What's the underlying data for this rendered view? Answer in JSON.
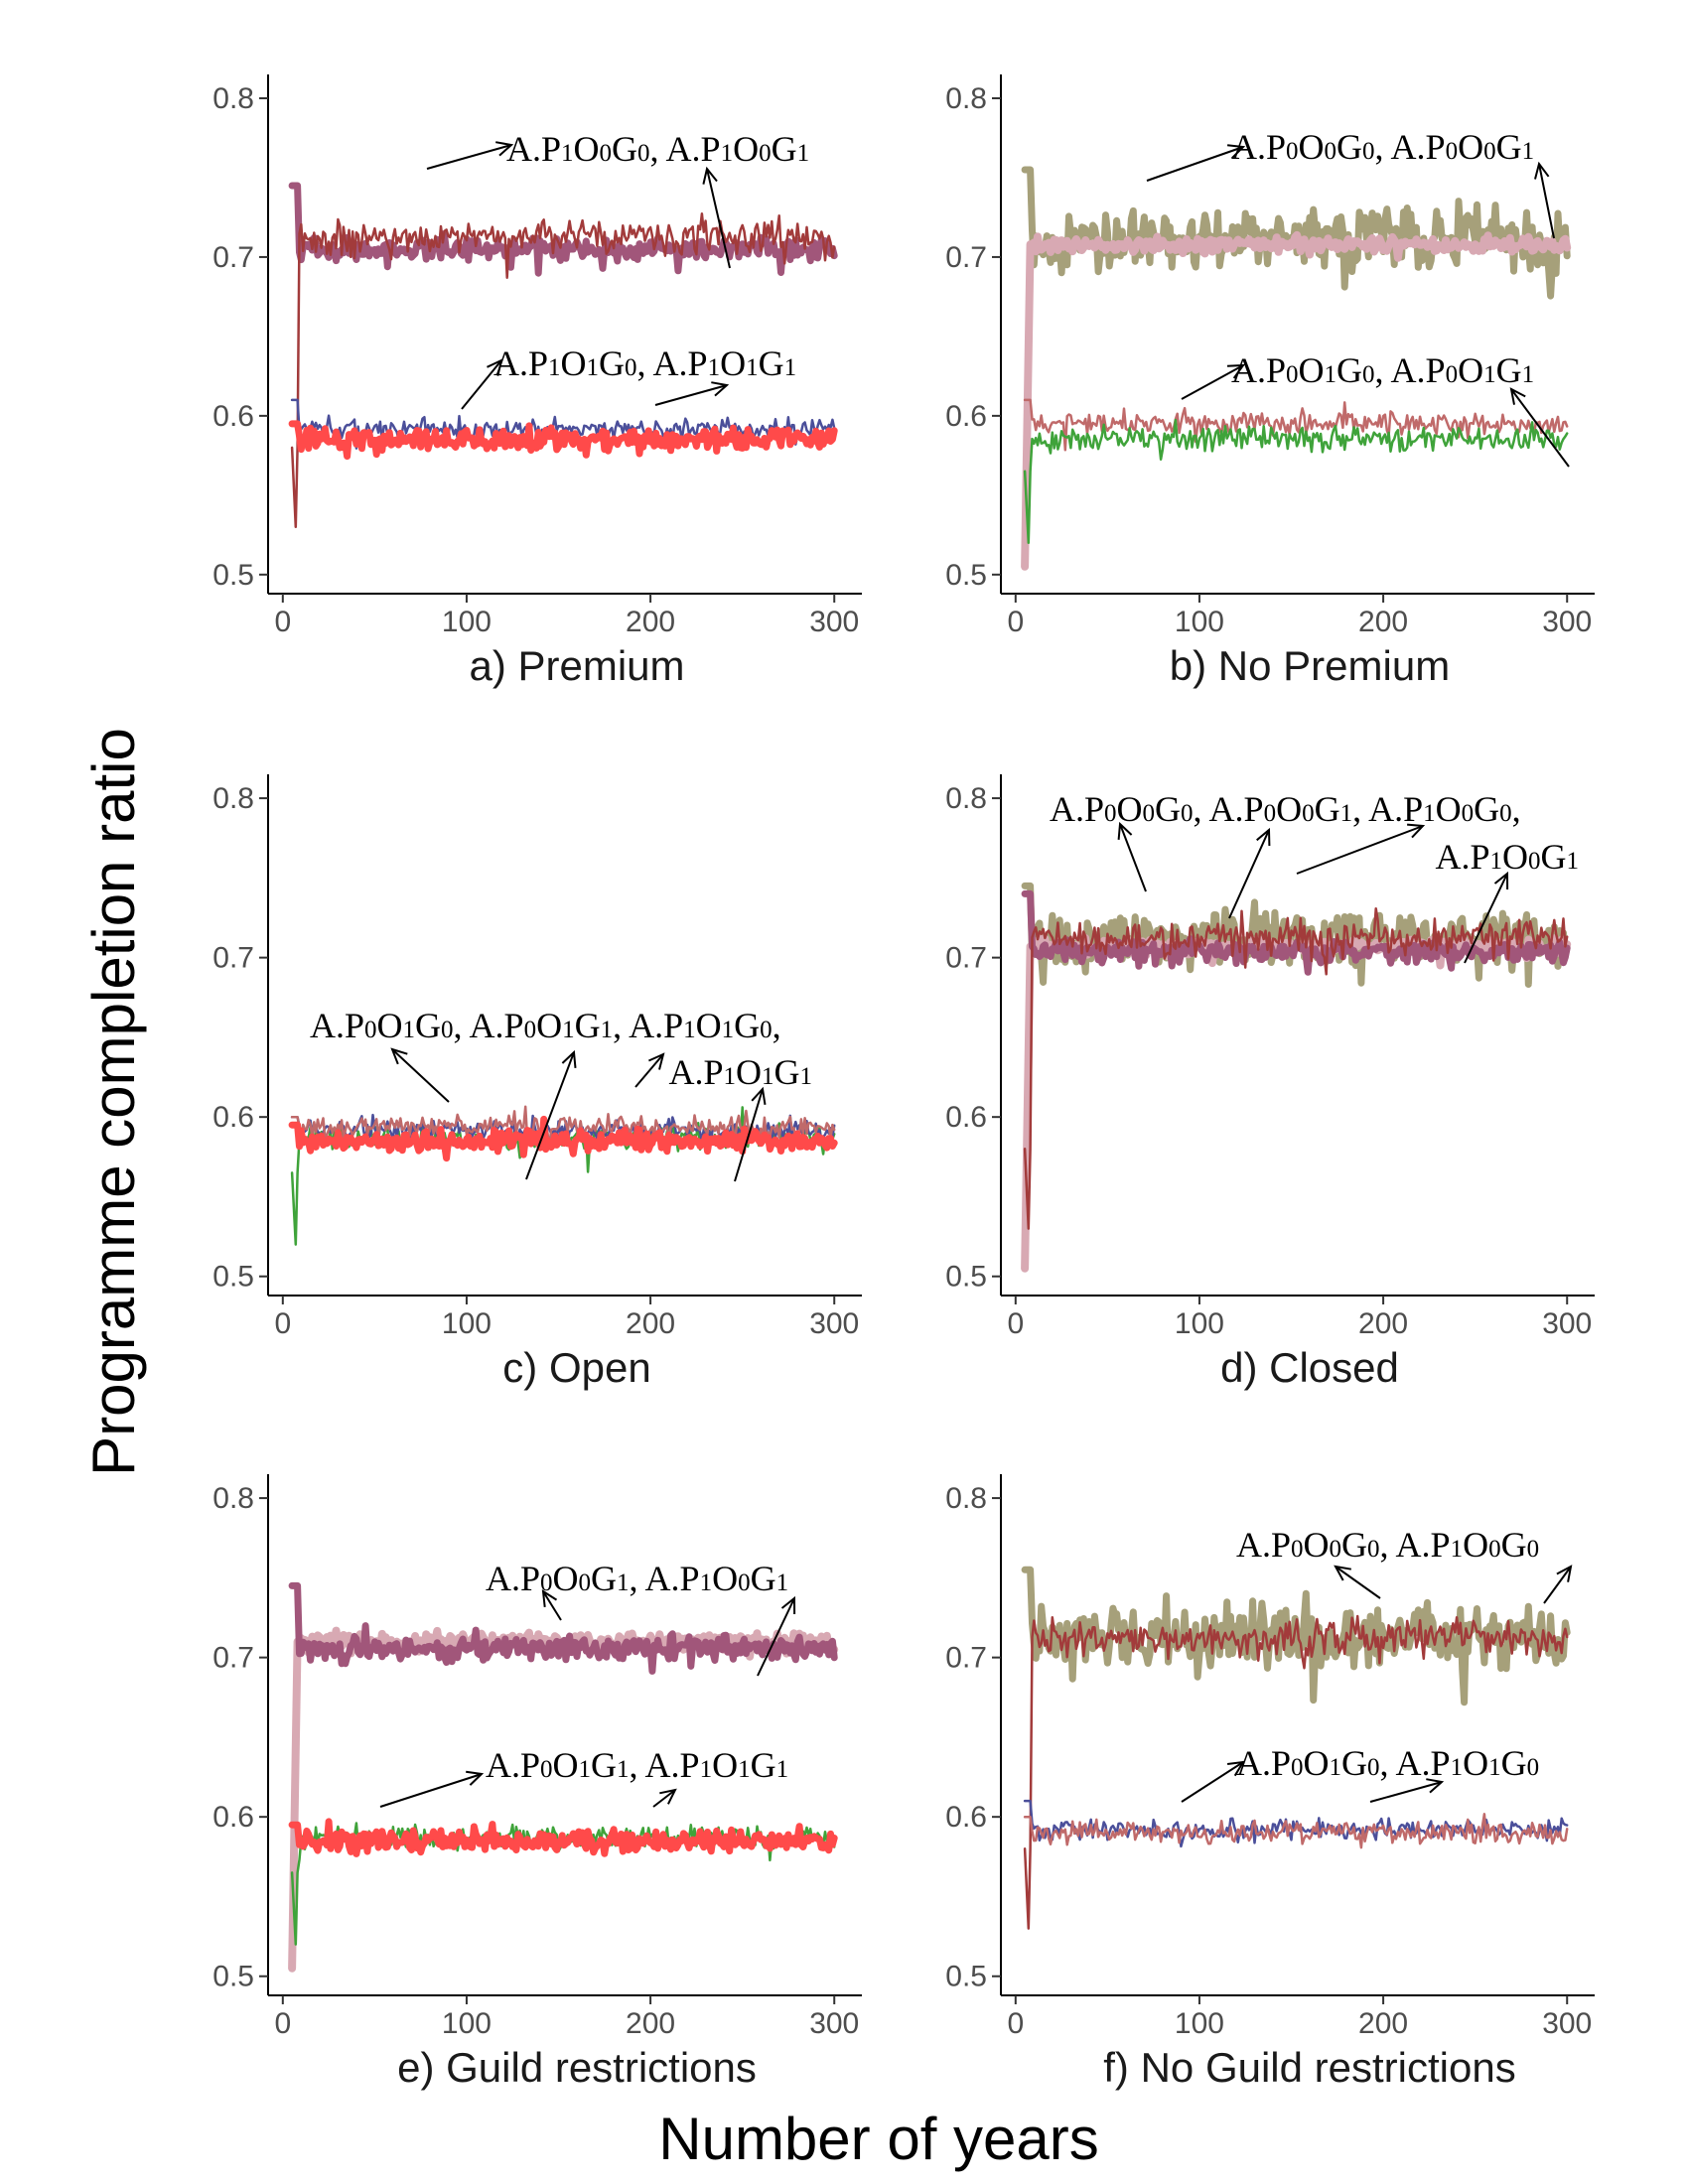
{
  "figure": {
    "ylabel": "Programme completion ratio",
    "xlabel": "Number of years"
  },
  "colors": {
    "olive": "#a6a07a",
    "pink": "#d8a9b3",
    "mauve": "#a1567a",
    "brown": "#a23b3b",
    "navy": "#4b4f9a",
    "red": "#ff4a4a",
    "green": "#3fa33a",
    "rose": "#c06a6a"
  },
  "chart_data": [
    {
      "type": "line",
      "caption": "a) Premium",
      "xticks": [
        0,
        100,
        200,
        300
      ],
      "yticks": [
        "0.5",
        "0.6",
        "0.7",
        "0.8"
      ],
      "xlim": [
        -8,
        315
      ],
      "ylim": [
        0.488,
        0.815
      ],
      "annotations": [
        {
          "segs": [
            {
              "t": "A.P"
            },
            {
              "t": "1",
              "s": 1
            },
            {
              "t": "O"
            },
            {
              "t": "0",
              "s": 1
            },
            {
              "t": "G"
            },
            {
              "t": "0",
              "s": 1
            },
            {
              "t": ", A.P"
            },
            {
              "t": "1",
              "s": 1
            },
            {
              "t": "O"
            },
            {
              "t": "0",
              "s": 1
            },
            {
              "t": "G"
            },
            {
              "t": "1",
              "s": 1
            }
          ]
        },
        {
          "segs": [
            {
              "t": "A.P"
            },
            {
              "t": "1",
              "s": 1
            },
            {
              "t": "O"
            },
            {
              "t": "1",
              "s": 1
            },
            {
              "t": "G"
            },
            {
              "t": "0",
              "s": 1
            },
            {
              "t": ", A.P"
            },
            {
              "t": "1",
              "s": 1
            },
            {
              "t": "O"
            },
            {
              "t": "1",
              "s": 1
            },
            {
              "t": "G"
            },
            {
              "t": "1",
              "s": 1
            }
          ]
        }
      ],
      "series": [
        {
          "color": "mauve",
          "width": 7,
          "base": 0.705,
          "amp": 0.01,
          "start": 0.745,
          "seed": 11
        },
        {
          "color": "brown",
          "width": 2.5,
          "base": 0.712,
          "amp": 0.016,
          "start": 0.58,
          "dip": 0.53,
          "seed": 12
        },
        {
          "color": "navy",
          "width": 2.5,
          "base": 0.592,
          "amp": 0.009,
          "start": 0.61,
          "seed": 13
        },
        {
          "color": "red",
          "width": 7,
          "base": 0.585,
          "amp": 0.01,
          "start": 0.595,
          "seed": 14
        }
      ]
    },
    {
      "type": "line",
      "caption": "b) No Premium",
      "xticks": [
        0,
        100,
        200,
        300
      ],
      "yticks": [
        "0.5",
        "0.6",
        "0.7",
        "0.8"
      ],
      "xlim": [
        -8,
        315
      ],
      "ylim": [
        0.488,
        0.815
      ],
      "annotations": [
        {
          "segs": [
            {
              "t": "A.P"
            },
            {
              "t": "0",
              "s": 1
            },
            {
              "t": "O"
            },
            {
              "t": "0",
              "s": 1
            },
            {
              "t": "G"
            },
            {
              "t": "0",
              "s": 1
            },
            {
              "t": ", A.P"
            },
            {
              "t": "0",
              "s": 1
            },
            {
              "t": "O"
            },
            {
              "t": "0",
              "s": 1
            },
            {
              "t": "G"
            },
            {
              "t": "1",
              "s": 1
            }
          ]
        },
        {
          "segs": [
            {
              "t": "A.P"
            },
            {
              "t": "0",
              "s": 1
            },
            {
              "t": "O"
            },
            {
              "t": "1",
              "s": 1
            },
            {
              "t": "G"
            },
            {
              "t": "0",
              "s": 1
            },
            {
              "t": ", A.P"
            },
            {
              "t": "0",
              "s": 1
            },
            {
              "t": "O"
            },
            {
              "t": "1",
              "s": 1
            },
            {
              "t": "G"
            },
            {
              "t": "1",
              "s": 1
            }
          ]
        }
      ],
      "series": [
        {
          "color": "olive",
          "width": 7,
          "base": 0.712,
          "amp": 0.028,
          "start": 0.755,
          "seed": 21
        },
        {
          "color": "pink",
          "width": 8,
          "base": 0.708,
          "amp": 0.007,
          "start": 0.505,
          "seed": 22
        },
        {
          "color": "rose",
          "width": 2.5,
          "base": 0.595,
          "amp": 0.011,
          "start": 0.61,
          "seed": 23
        },
        {
          "color": "green",
          "width": 2.5,
          "base": 0.586,
          "amp": 0.011,
          "start": 0.565,
          "dip": 0.52,
          "seed": 24
        }
      ]
    },
    {
      "type": "line",
      "caption": "c) Open",
      "xticks": [
        0,
        100,
        200,
        300
      ],
      "yticks": [
        "0.5",
        "0.6",
        "0.7",
        "0.8"
      ],
      "xlim": [
        -8,
        315
      ],
      "ylim": [
        0.488,
        0.815
      ],
      "annotations": [
        {
          "segs": [
            {
              "t": "A.P"
            },
            {
              "t": "0",
              "s": 1
            },
            {
              "t": "O"
            },
            {
              "t": "1",
              "s": 1
            },
            {
              "t": "G"
            },
            {
              "t": "0",
              "s": 1
            },
            {
              "t": ", A.P"
            },
            {
              "t": "0",
              "s": 1
            },
            {
              "t": "O"
            },
            {
              "t": "1",
              "s": 1
            },
            {
              "t": "G"
            },
            {
              "t": "1",
              "s": 1
            },
            {
              "t": ", A.P"
            },
            {
              "t": "1",
              "s": 1
            },
            {
              "t": "O"
            },
            {
              "t": "1",
              "s": 1
            },
            {
              "t": "G"
            },
            {
              "t": "0",
              "s": 1
            },
            {
              "t": ","
            }
          ]
        },
        {
          "segs": [
            {
              "t": "A.P"
            },
            {
              "t": "1",
              "s": 1
            },
            {
              "t": "O"
            },
            {
              "t": "1",
              "s": 1
            },
            {
              "t": "G"
            },
            {
              "t": "1",
              "s": 1
            }
          ]
        }
      ],
      "series": [
        {
          "color": "green",
          "width": 2.5,
          "base": 0.587,
          "amp": 0.011,
          "start": 0.565,
          "dip": 0.52,
          "seed": 31
        },
        {
          "color": "navy",
          "width": 2.5,
          "base": 0.592,
          "amp": 0.009,
          "start": 0.6,
          "seed": 32
        },
        {
          "color": "rose",
          "width": 2.5,
          "base": 0.594,
          "amp": 0.01,
          "start": 0.6,
          "seed": 33
        },
        {
          "color": "red",
          "width": 7,
          "base": 0.585,
          "amp": 0.01,
          "start": 0.595,
          "seed": 34
        }
      ]
    },
    {
      "type": "line",
      "caption": "d) Closed",
      "xticks": [
        0,
        100,
        200,
        300
      ],
      "yticks": [
        "0.5",
        "0.6",
        "0.7",
        "0.8"
      ],
      "xlim": [
        -8,
        315
      ],
      "ylim": [
        0.488,
        0.815
      ],
      "annotations": [
        {
          "segs": [
            {
              "t": "A.P"
            },
            {
              "t": "0",
              "s": 1
            },
            {
              "t": "O"
            },
            {
              "t": "0",
              "s": 1
            },
            {
              "t": "G"
            },
            {
              "t": "0",
              "s": 1
            },
            {
              "t": ", A.P"
            },
            {
              "t": "0",
              "s": 1
            },
            {
              "t": "O"
            },
            {
              "t": "0",
              "s": 1
            },
            {
              "t": "G"
            },
            {
              "t": "1",
              "s": 1
            },
            {
              "t": ", A.P"
            },
            {
              "t": "1",
              "s": 1
            },
            {
              "t": "O"
            },
            {
              "t": "0",
              "s": 1
            },
            {
              "t": "G"
            },
            {
              "t": "0",
              "s": 1
            },
            {
              "t": ","
            }
          ]
        },
        {
          "segs": [
            {
              "t": "A.P"
            },
            {
              "t": "1",
              "s": 1
            },
            {
              "t": "O"
            },
            {
              "t": "0",
              "s": 1
            },
            {
              "t": "G"
            },
            {
              "t": "1",
              "s": 1
            }
          ]
        }
      ],
      "series": [
        {
          "color": "olive",
          "width": 7,
          "base": 0.712,
          "amp": 0.026,
          "start": 0.745,
          "seed": 41
        },
        {
          "color": "pink",
          "width": 8,
          "base": 0.707,
          "amp": 0.007,
          "start": 0.505,
          "seed": 42
        },
        {
          "color": "mauve",
          "width": 7,
          "base": 0.704,
          "amp": 0.009,
          "start": 0.74,
          "seed": 43
        },
        {
          "color": "brown",
          "width": 2.5,
          "base": 0.712,
          "amp": 0.016,
          "start": 0.58,
          "dip": 0.53,
          "seed": 44
        }
      ]
    },
    {
      "type": "line",
      "caption": "e) Guild restrictions",
      "xticks": [
        0,
        100,
        200,
        300
      ],
      "yticks": [
        "0.5",
        "0.6",
        "0.7",
        "0.8"
      ],
      "xlim": [
        -8,
        315
      ],
      "ylim": [
        0.488,
        0.815
      ],
      "annotations": [
        {
          "segs": [
            {
              "t": "A.P"
            },
            {
              "t": "0",
              "s": 1
            },
            {
              "t": "O"
            },
            {
              "t": "0",
              "s": 1
            },
            {
              "t": "G"
            },
            {
              "t": "1",
              "s": 1
            },
            {
              "t": ", A.P"
            },
            {
              "t": "1",
              "s": 1
            },
            {
              "t": "O"
            },
            {
              "t": "0",
              "s": 1
            },
            {
              "t": "G"
            },
            {
              "t": "1",
              "s": 1
            }
          ]
        },
        {
          "segs": [
            {
              "t": "A.P"
            },
            {
              "t": "0",
              "s": 1
            },
            {
              "t": "O"
            },
            {
              "t": "1",
              "s": 1
            },
            {
              "t": "G"
            },
            {
              "t": "1",
              "s": 1
            },
            {
              "t": ", A.P"
            },
            {
              "t": "1",
              "s": 1
            },
            {
              "t": "O"
            },
            {
              "t": "1",
              "s": 1
            },
            {
              "t": "G"
            },
            {
              "t": "1",
              "s": 1
            }
          ]
        }
      ],
      "series": [
        {
          "color": "pink",
          "width": 8,
          "base": 0.71,
          "amp": 0.008,
          "start": 0.505,
          "seed": 51
        },
        {
          "color": "mauve",
          "width": 7,
          "base": 0.706,
          "amp": 0.011,
          "start": 0.745,
          "seed": 52
        },
        {
          "color": "green",
          "width": 2.5,
          "base": 0.587,
          "amp": 0.011,
          "start": 0.565,
          "dip": 0.52,
          "seed": 53
        },
        {
          "color": "red",
          "width": 7,
          "base": 0.585,
          "amp": 0.01,
          "start": 0.595,
          "seed": 54
        }
      ]
    },
    {
      "type": "line",
      "caption": "f) No Guild restrictions",
      "xticks": [
        0,
        100,
        200,
        300
      ],
      "yticks": [
        "0.5",
        "0.6",
        "0.7",
        "0.8"
      ],
      "xlim": [
        -8,
        315
      ],
      "ylim": [
        0.488,
        0.815
      ],
      "annotations": [
        {
          "segs": [
            {
              "t": "A.P"
            },
            {
              "t": "0",
              "s": 1
            },
            {
              "t": "O"
            },
            {
              "t": "0",
              "s": 1
            },
            {
              "t": "G"
            },
            {
              "t": "0",
              "s": 1
            },
            {
              "t": ", A.P"
            },
            {
              "t": "1",
              "s": 1
            },
            {
              "t": "O"
            },
            {
              "t": "0",
              "s": 1
            },
            {
              "t": "G"
            },
            {
              "t": "0",
              "s": 1
            }
          ]
        },
        {
          "segs": [
            {
              "t": "A.P"
            },
            {
              "t": "0",
              "s": 1
            },
            {
              "t": "O"
            },
            {
              "t": "1",
              "s": 1
            },
            {
              "t": "G"
            },
            {
              "t": "0",
              "s": 1
            },
            {
              "t": ", A.P"
            },
            {
              "t": "1",
              "s": 1
            },
            {
              "t": "O"
            },
            {
              "t": "1",
              "s": 1
            },
            {
              "t": "G"
            },
            {
              "t": "0",
              "s": 1
            }
          ]
        }
      ],
      "series": [
        {
          "color": "olive",
          "width": 7,
          "base": 0.712,
          "amp": 0.028,
          "start": 0.755,
          "seed": 61
        },
        {
          "color": "brown",
          "width": 2.5,
          "base": 0.712,
          "amp": 0.017,
          "start": 0.58,
          "dip": 0.53,
          "seed": 62
        },
        {
          "color": "navy",
          "width": 2.5,
          "base": 0.592,
          "amp": 0.009,
          "start": 0.61,
          "seed": 63
        },
        {
          "color": "rose",
          "width": 2.5,
          "base": 0.59,
          "amp": 0.01,
          "start": 0.6,
          "seed": 64
        }
      ]
    }
  ]
}
